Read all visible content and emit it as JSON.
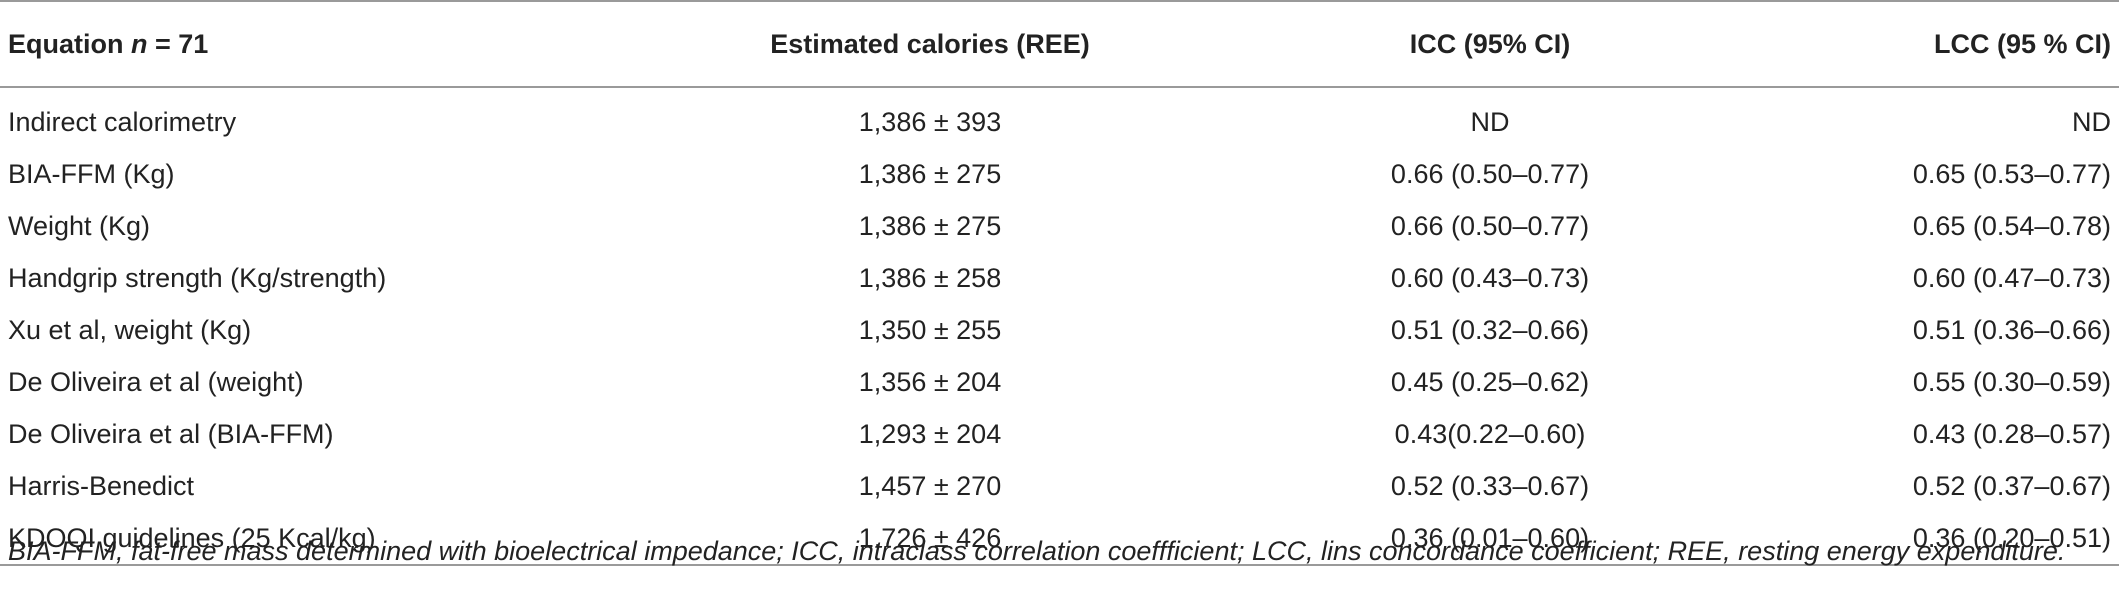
{
  "table": {
    "headers": {
      "equation": "Equation",
      "equation_italic": "n",
      "equation_suffix": " = 71",
      "calories": "Estimated calories (REE)",
      "icc": "ICC (95% CI)",
      "lcc": "LCC (95 % CI)"
    },
    "rows": [
      {
        "equation": "Indirect calorimetry",
        "calories": "1,386 ± 393",
        "icc": "ND",
        "lcc": "ND"
      },
      {
        "equation": "BIA-FFM (Kg)",
        "calories": "1,386 ± 275",
        "icc": "0.66 (0.50–0.77)",
        "lcc": "0.65 (0.53–0.77)"
      },
      {
        "equation": "Weight (Kg)",
        "calories": "1,386 ± 275",
        "icc": "0.66 (0.50–0.77)",
        "lcc": "0.65 (0.54–0.78)"
      },
      {
        "equation": "Handgrip strength (Kg/strength)",
        "calories": "1,386 ± 258",
        "icc": "0.60 (0.43–0.73)",
        "lcc": "0.60 (0.47–0.73)"
      },
      {
        "equation": "Xu et al, weight (Kg)",
        "calories": "1,350 ± 255",
        "icc": "0.51 (0.32–0.66)",
        "lcc": "0.51 (0.36–0.66)"
      },
      {
        "equation": "De Oliveira et al (weight)",
        "calories": "1,356 ± 204",
        "icc": "0.45 (0.25–0.62)",
        "lcc": "0.55 (0.30–0.59)"
      },
      {
        "equation": "De Oliveira et al (BIA-FFM)",
        "calories": "1,293 ± 204",
        "icc": "0.43(0.22–0.60)",
        "lcc": "0.43 (0.28–0.57)"
      },
      {
        "equation": "Harris-Benedict",
        "calories": "1,457 ± 270",
        "icc": "0.52 (0.33–0.67)",
        "lcc": "0.52 (0.37–0.67)"
      },
      {
        "equation": "KDOQI guidelines (25 Kcal/kg)",
        "calories": "1,726 ± 426",
        "icc": "0.36 (0.01–0.60)",
        "lcc": "0.36 (0.20–0.51)"
      }
    ]
  },
  "footnote": "BIA-FFM, fat-free mass determined with bioelectrical impedance; ICC, intraclass correlation coeffficient; LCC, lins concordance coefficient; REE, resting energy expenditure."
}
